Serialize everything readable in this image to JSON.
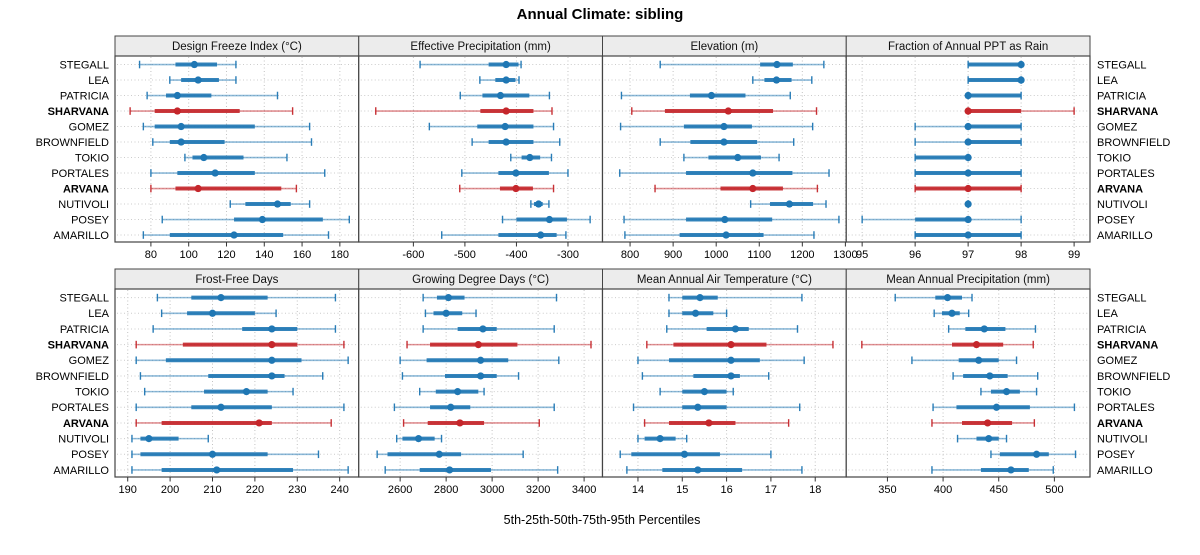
{
  "chart_data": {
    "type": "scatter",
    "subtype": "percentile-dotplot",
    "title": "Annual Climate: sibling",
    "caption": "5th-25th-50th-75th-95th Percentiles",
    "percentiles": [
      5,
      25,
      50,
      75,
      95
    ],
    "grid": {
      "rows": 2,
      "cols": 4
    },
    "legend_position": "none",
    "gridlines": "dotted",
    "categories": [
      "STEGALL",
      "LEA",
      "PATRICIA",
      "SHARVANA",
      "GOMEZ",
      "BROWNFIELD",
      "TOKIO",
      "PORTALES",
      "ARVANA",
      "NUTIVOLI",
      "POSEY",
      "AMARILLO"
    ],
    "highlighted": [
      "SHARVANA",
      "ARVANA"
    ],
    "colors": {
      "normal": "#1f77b4",
      "highlight": "#c5262b",
      "strip_fill": "#ececec",
      "panel_border": "#444444",
      "gridline": "#c3c3c3"
    },
    "panels": [
      {
        "title": "Design Freeze Index (°C)",
        "xlim": [
          61,
          190
        ],
        "ticks": [
          80,
          100,
          120,
          140,
          160,
          180
        ],
        "values": [
          [
            74,
            93,
            103,
            115,
            125
          ],
          [
            90,
            96,
            105,
            116,
            125
          ],
          [
            78,
            88,
            94,
            112,
            147
          ],
          [
            69,
            82,
            94,
            127,
            155
          ],
          [
            76,
            82,
            96,
            135,
            164
          ],
          [
            81,
            90,
            96,
            119,
            165
          ],
          [
            98,
            102,
            108,
            129,
            152
          ],
          [
            80,
            94,
            114,
            135,
            172
          ],
          [
            80,
            93,
            105,
            149,
            157
          ],
          [
            122,
            130,
            147,
            154,
            164
          ],
          [
            86,
            124,
            139,
            171,
            185
          ],
          [
            76,
            90,
            124,
            150,
            174
          ]
        ]
      },
      {
        "title": "Effective Precipitation (mm)",
        "xlim": [
          -706,
          -233
        ],
        "ticks": [
          -600,
          -500,
          -400,
          -300
        ],
        "values": [
          [
            -587,
            -454,
            -420,
            -396,
            -391
          ],
          [
            -471,
            -441,
            -420,
            -402,
            -395
          ],
          [
            -509,
            -466,
            -431,
            -375,
            -336
          ],
          [
            -673,
            -470,
            -420,
            -367,
            -331
          ],
          [
            -569,
            -476,
            -422,
            -367,
            -328
          ],
          [
            -486,
            -454,
            -420,
            -367,
            -316
          ],
          [
            -411,
            -390,
            -374,
            -354,
            -332
          ],
          [
            -506,
            -435,
            -401,
            -337,
            -300
          ],
          [
            -510,
            -432,
            -401,
            -368,
            -328
          ],
          [
            -372,
            -366,
            -357,
            -349,
            -337
          ],
          [
            -427,
            -400,
            -336,
            -302,
            -257
          ],
          [
            -545,
            -435,
            -353,
            -322,
            -304
          ]
        ]
      },
      {
        "title": "Elevation (m)",
        "xlim": [
          736,
          1302
        ],
        "ticks": [
          800,
          900,
          1000,
          1100,
          1200,
          1300
        ],
        "values": [
          [
            870,
            1102,
            1141,
            1178,
            1250
          ],
          [
            1085,
            1112,
            1140,
            1175,
            1222
          ],
          [
            780,
            939,
            989,
            1068,
            1172
          ],
          [
            804,
            881,
            1028,
            1132,
            1233
          ],
          [
            778,
            925,
            1018,
            1083,
            1224
          ],
          [
            870,
            940,
            1018,
            1095,
            1180
          ],
          [
            925,
            982,
            1050,
            1104,
            1146
          ],
          [
            776,
            930,
            1085,
            1177,
            1262
          ],
          [
            858,
            1010,
            1085,
            1155,
            1235
          ],
          [
            1080,
            1125,
            1170,
            1225,
            1255
          ],
          [
            786,
            930,
            1020,
            1130,
            1285
          ],
          [
            788,
            915,
            1023,
            1110,
            1227
          ]
        ]
      },
      {
        "title": "Fraction of Annual PPT as Rain",
        "xlim": [
          94.7,
          99.3
        ],
        "ticks": [
          95,
          96,
          97,
          98,
          99
        ],
        "values": [
          [
            97,
            97,
            98,
            98,
            98
          ],
          [
            97,
            97,
            98,
            98,
            98
          ],
          [
            97,
            97,
            97,
            98,
            98
          ],
          [
            97,
            97,
            97,
            98,
            99
          ],
          [
            96,
            97,
            97,
            98,
            98
          ],
          [
            96,
            97,
            97,
            98,
            98
          ],
          [
            96,
            96,
            97,
            97,
            97
          ],
          [
            96,
            96,
            97,
            98,
            98
          ],
          [
            96,
            96,
            97,
            98,
            98
          ],
          [
            97,
            97,
            97,
            97,
            97
          ],
          [
            95,
            96,
            97,
            97,
            98
          ],
          [
            96,
            96,
            97,
            98,
            98
          ]
        ]
      },
      {
        "title": "Frost-Free Days",
        "xlim": [
          187,
          244.5
        ],
        "ticks": [
          190,
          200,
          210,
          220,
          230,
          240
        ],
        "values": [
          [
            197,
            205,
            212,
            223,
            239
          ],
          [
            198,
            204,
            210,
            220,
            225
          ],
          [
            196,
            217,
            224,
            230,
            239
          ],
          [
            192,
            203,
            224,
            230,
            241
          ],
          [
            192,
            199,
            224,
            231,
            242
          ],
          [
            193,
            209,
            224,
            227,
            236
          ],
          [
            194,
            208,
            218,
            223,
            229
          ],
          [
            192,
            205,
            212,
            224,
            241
          ],
          [
            192,
            198,
            221,
            224,
            238
          ],
          [
            191,
            193,
            195,
            202,
            209
          ],
          [
            191,
            193,
            210,
            223,
            235
          ],
          [
            191,
            198,
            211,
            229,
            242
          ]
        ]
      },
      {
        "title": "Growing Degree Days (°C)",
        "xlim": [
          2420,
          3480
        ],
        "ticks": [
          2600,
          2800,
          3000,
          3200,
          3400
        ],
        "values": [
          [
            2700,
            2760,
            2810,
            2880,
            3280
          ],
          [
            2710,
            2745,
            2800,
            2870,
            2930
          ],
          [
            2700,
            2850,
            2960,
            3020,
            3270
          ],
          [
            2630,
            2730,
            2940,
            3110,
            3430
          ],
          [
            2600,
            2715,
            2950,
            3070,
            3290
          ],
          [
            2610,
            2795,
            2950,
            3020,
            3115
          ],
          [
            2685,
            2755,
            2850,
            2940,
            2965
          ],
          [
            2575,
            2730,
            2820,
            2905,
            3270
          ],
          [
            2615,
            2720,
            2860,
            2965,
            3205
          ],
          [
            2585,
            2610,
            2680,
            2750,
            2780
          ],
          [
            2500,
            2545,
            2770,
            2865,
            3135
          ],
          [
            2535,
            2685,
            2815,
            2995,
            3285
          ]
        ]
      },
      {
        "title": "Mean Annual Air Temperature (°C)",
        "xlim": [
          13.2,
          18.7
        ],
        "ticks": [
          14,
          15,
          16,
          17,
          18
        ],
        "values": [
          [
            14.7,
            15.0,
            15.4,
            15.8,
            17.7
          ],
          [
            14.7,
            15.0,
            15.3,
            15.7,
            16.0
          ],
          [
            14.65,
            15.55,
            16.2,
            16.5,
            17.6
          ],
          [
            14.2,
            14.8,
            16.1,
            16.9,
            18.4
          ],
          [
            14.0,
            14.7,
            16.1,
            16.75,
            17.75
          ],
          [
            14.1,
            15.25,
            16.1,
            16.3,
            16.95
          ],
          [
            14.5,
            15.0,
            15.5,
            16.0,
            16.15
          ],
          [
            13.9,
            15.0,
            15.35,
            16.0,
            17.65
          ],
          [
            14.15,
            14.7,
            15.6,
            16.2,
            17.4
          ],
          [
            14.0,
            14.15,
            14.5,
            14.85,
            15.1
          ],
          [
            13.6,
            13.85,
            15.05,
            15.85,
            17.0
          ],
          [
            13.75,
            14.55,
            15.35,
            16.35,
            17.7
          ]
        ]
      },
      {
        "title": "Mean Annual Precipitation (mm)",
        "xlim": [
          313,
          532
        ],
        "ticks": [
          350,
          400,
          450,
          500
        ],
        "values": [
          [
            357,
            393,
            404,
            417,
            426
          ],
          [
            392,
            399,
            408,
            415,
            423
          ],
          [
            405,
            420,
            437,
            456,
            483
          ],
          [
            327,
            408,
            430,
            454,
            481
          ],
          [
            372,
            414,
            432,
            450,
            466
          ],
          [
            409,
            418,
            442,
            458,
            485
          ],
          [
            434,
            443,
            457,
            469,
            484
          ],
          [
            391,
            412,
            448,
            478,
            518
          ],
          [
            390,
            417,
            440,
            462,
            482
          ],
          [
            413,
            430,
            441,
            450,
            457
          ],
          [
            443,
            451,
            484,
            495,
            519
          ],
          [
            390,
            434,
            461,
            477,
            499
          ]
        ]
      }
    ]
  }
}
